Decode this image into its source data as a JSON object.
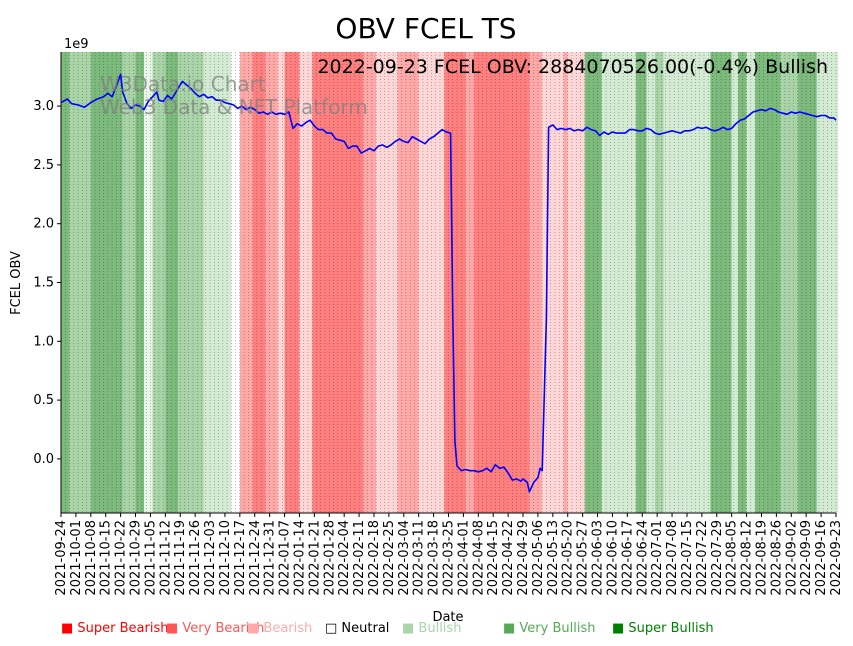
{
  "chart_data": {
    "type": "line",
    "title": "OBV FCEL TS",
    "annotation": "2022-09-23 FCEL OBV: 2884070526.00(-0.4%) Bullish",
    "watermark": [
      "W3Data.io Chart",
      "Web3 Data & NFT Platform"
    ],
    "xlabel": "Date",
    "ylabel": "FCEL OBV",
    "y_multiplier_label": "1e9",
    "ylim": [
      -0.46,
      3.46
    ],
    "y_ticks": [
      0.0,
      0.5,
      1.0,
      1.5,
      2.0,
      2.5,
      3.0
    ],
    "y_tick_labels": [
      "0.0",
      "0.5",
      "1.0",
      "1.5",
      "2.0",
      "2.5",
      "3.0"
    ],
    "x_start": "2021-09-24",
    "x_end": "2022-09-23",
    "x_tick_labels": [
      "2021-09-24",
      "2021-10-01",
      "2021-10-08",
      "2021-10-15",
      "2021-10-22",
      "2021-10-29",
      "2021-11-05",
      "2021-11-12",
      "2021-11-19",
      "2021-11-26",
      "2021-12-03",
      "2021-12-10",
      "2021-12-17",
      "2021-12-24",
      "2021-12-31",
      "2022-01-07",
      "2022-01-14",
      "2022-01-21",
      "2022-01-28",
      "2022-02-04",
      "2022-02-11",
      "2022-02-18",
      "2022-02-25",
      "2022-03-04",
      "2022-03-11",
      "2022-03-18",
      "2022-03-25",
      "2022-04-01",
      "2022-04-08",
      "2022-04-15",
      "2022-04-22",
      "2022-04-29",
      "2022-05-06",
      "2022-05-13",
      "2022-05-20",
      "2022-05-27",
      "2022-06-03",
      "2022-06-10",
      "2022-06-17",
      "2022-06-24",
      "2022-07-01",
      "2022-07-08",
      "2022-07-15",
      "2022-07-22",
      "2022-07-29",
      "2022-08-05",
      "2022-08-12",
      "2022-08-19",
      "2022-08-26",
      "2022-09-02",
      "2022-09-09",
      "2022-09-16",
      "2022-09-23"
    ],
    "series": [
      {
        "name": "FCEL OBV",
        "color": "#0000ff",
        "points": [
          [
            0,
            3.03
          ],
          [
            3,
            3.06
          ],
          [
            5,
            3.02
          ],
          [
            8,
            3.01
          ],
          [
            11,
            2.99
          ],
          [
            14,
            3.03
          ],
          [
            17,
            3.06
          ],
          [
            20,
            3.08
          ],
          [
            22,
            3.11
          ],
          [
            24,
            3.08
          ],
          [
            26,
            3.17
          ],
          [
            28,
            3.27
          ],
          [
            29,
            3.12
          ],
          [
            31,
            3.02
          ],
          [
            33,
            2.98
          ],
          [
            35,
            3.01
          ],
          [
            37,
            3.0
          ],
          [
            39,
            2.97
          ],
          [
            41,
            3.04
          ],
          [
            43,
            3.08
          ],
          [
            45,
            3.12
          ],
          [
            46,
            3.05
          ],
          [
            48,
            3.04
          ],
          [
            50,
            3.09
          ],
          [
            52,
            3.06
          ],
          [
            54,
            3.12
          ],
          [
            56,
            3.18
          ],
          [
            57,
            3.21
          ],
          [
            59,
            3.18
          ],
          [
            61,
            3.15
          ],
          [
            63,
            3.11
          ],
          [
            65,
            3.08
          ],
          [
            67,
            3.1
          ],
          [
            69,
            3.07
          ],
          [
            71,
            3.08
          ],
          [
            73,
            3.05
          ],
          [
            75,
            3.05
          ],
          [
            77,
            3.03
          ],
          [
            79,
            3.02
          ],
          [
            81,
            3.01
          ],
          [
            83,
            2.98
          ],
          [
            85,
            3.0
          ],
          [
            87,
            2.97
          ],
          [
            89,
            2.99
          ],
          [
            91,
            2.97
          ],
          [
            93,
            2.94
          ],
          [
            95,
            2.95
          ],
          [
            97,
            2.93
          ],
          [
            99,
            2.95
          ],
          [
            101,
            2.93
          ],
          [
            103,
            2.94
          ],
          [
            105,
            2.93
          ],
          [
            107,
            2.95
          ],
          [
            108,
            2.88
          ],
          [
            109,
            2.81
          ],
          [
            111,
            2.85
          ],
          [
            113,
            2.83
          ],
          [
            115,
            2.86
          ],
          [
            117,
            2.88
          ],
          [
            119,
            2.83
          ],
          [
            121,
            2.8
          ],
          [
            123,
            2.8
          ],
          [
            125,
            2.77
          ],
          [
            127,
            2.77
          ],
          [
            129,
            2.72
          ],
          [
            131,
            2.71
          ],
          [
            133,
            2.7
          ],
          [
            135,
            2.64
          ],
          [
            137,
            2.66
          ],
          [
            139,
            2.66
          ],
          [
            141,
            2.6
          ],
          [
            143,
            2.62
          ],
          [
            145,
            2.64
          ],
          [
            147,
            2.62
          ],
          [
            149,
            2.66
          ],
          [
            151,
            2.67
          ],
          [
            153,
            2.65
          ],
          [
            155,
            2.67
          ],
          [
            157,
            2.7
          ],
          [
            159,
            2.72
          ],
          [
            161,
            2.7
          ],
          [
            163,
            2.69
          ],
          [
            165,
            2.74
          ],
          [
            167,
            2.72
          ],
          [
            169,
            2.7
          ],
          [
            171,
            2.68
          ],
          [
            173,
            2.72
          ],
          [
            175,
            2.74
          ],
          [
            177,
            2.77
          ],
          [
            179,
            2.8
          ],
          [
            181,
            2.78
          ],
          [
            183,
            2.77
          ],
          [
            184,
            1.2
          ],
          [
            185,
            0.15
          ],
          [
            186,
            -0.06
          ],
          [
            188,
            -0.1
          ],
          [
            190,
            -0.09
          ],
          [
            192,
            -0.1
          ],
          [
            194,
            -0.1
          ],
          [
            196,
            -0.11
          ],
          [
            198,
            -0.1
          ],
          [
            200,
            -0.08
          ],
          [
            202,
            -0.11
          ],
          [
            204,
            -0.05
          ],
          [
            206,
            -0.08
          ],
          [
            208,
            -0.07
          ],
          [
            210,
            -0.12
          ],
          [
            212,
            -0.18
          ],
          [
            214,
            -0.17
          ],
          [
            216,
            -0.19
          ],
          [
            217,
            -0.17
          ],
          [
            219,
            -0.2
          ],
          [
            220,
            -0.28
          ],
          [
            222,
            -0.2
          ],
          [
            224,
            -0.16
          ],
          [
            225,
            -0.08
          ],
          [
            226,
            -0.1
          ],
          [
            228,
            1.2
          ],
          [
            229,
            2.82
          ],
          [
            231,
            2.84
          ],
          [
            233,
            2.8
          ],
          [
            235,
            2.81
          ],
          [
            237,
            2.8
          ],
          [
            239,
            2.81
          ],
          [
            241,
            2.79
          ],
          [
            243,
            2.8
          ],
          [
            245,
            2.79
          ],
          [
            247,
            2.82
          ],
          [
            249,
            2.8
          ],
          [
            251,
            2.79
          ],
          [
            253,
            2.75
          ],
          [
            255,
            2.78
          ],
          [
            257,
            2.76
          ],
          [
            259,
            2.78
          ],
          [
            261,
            2.77
          ],
          [
            263,
            2.77
          ],
          [
            265,
            2.77
          ],
          [
            267,
            2.8
          ],
          [
            269,
            2.8
          ],
          [
            271,
            2.79
          ],
          [
            273,
            2.79
          ],
          [
            275,
            2.81
          ],
          [
            277,
            2.8
          ],
          [
            279,
            2.77
          ],
          [
            281,
            2.76
          ],
          [
            283,
            2.77
          ],
          [
            285,
            2.78
          ],
          [
            287,
            2.79
          ],
          [
            289,
            2.78
          ],
          [
            291,
            2.77
          ],
          [
            293,
            2.79
          ],
          [
            295,
            2.79
          ],
          [
            297,
            2.8
          ],
          [
            299,
            2.82
          ],
          [
            301,
            2.81
          ],
          [
            303,
            2.82
          ],
          [
            305,
            2.8
          ],
          [
            307,
            2.79
          ],
          [
            309,
            2.8
          ],
          [
            311,
            2.82
          ],
          [
            313,
            2.8
          ],
          [
            315,
            2.81
          ],
          [
            317,
            2.85
          ],
          [
            319,
            2.88
          ],
          [
            321,
            2.89
          ],
          [
            323,
            2.92
          ],
          [
            325,
            2.95
          ],
          [
            327,
            2.96
          ],
          [
            329,
            2.97
          ],
          [
            331,
            2.96
          ],
          [
            333,
            2.98
          ],
          [
            335,
            2.97
          ],
          [
            337,
            2.95
          ],
          [
            339,
            2.94
          ],
          [
            341,
            2.93
          ],
          [
            343,
            2.95
          ],
          [
            345,
            2.94
          ],
          [
            347,
            2.95
          ],
          [
            349,
            2.94
          ],
          [
            351,
            2.93
          ],
          [
            353,
            2.92
          ],
          [
            355,
            2.91
          ],
          [
            357,
            2.92
          ],
          [
            359,
            2.92
          ],
          [
            361,
            2.9
          ],
          [
            363,
            2.9
          ],
          [
            364,
            2.88
          ]
        ]
      }
    ],
    "sentiment_bands": [
      [
        0,
        4,
        "very-bullish"
      ],
      [
        4,
        14,
        "bullish"
      ],
      [
        14,
        29,
        "very-bullish"
      ],
      [
        29,
        35,
        "bullish"
      ],
      [
        35,
        39,
        "very-bullish"
      ],
      [
        39,
        43,
        "neutral-bullish"
      ],
      [
        43,
        49,
        "bullish"
      ],
      [
        49,
        55,
        "very-bullish"
      ],
      [
        55,
        61,
        "bullish"
      ],
      [
        61,
        67,
        "bullish"
      ],
      [
        67,
        80,
        "light-bullish"
      ],
      [
        80,
        84,
        "neutral"
      ],
      [
        84,
        90,
        "bearish"
      ],
      [
        90,
        96,
        "very-bearish"
      ],
      [
        96,
        102,
        "bearish"
      ],
      [
        102,
        105,
        "light-bearish"
      ],
      [
        105,
        112,
        "very-bearish"
      ],
      [
        112,
        118,
        "light-bearish"
      ],
      [
        118,
        142,
        "very-bearish"
      ],
      [
        142,
        148,
        "bearish"
      ],
      [
        148,
        158,
        "light-bearish"
      ],
      [
        158,
        168,
        "bearish"
      ],
      [
        168,
        180,
        "light-bearish"
      ],
      [
        180,
        190,
        "very-bearish"
      ],
      [
        190,
        194,
        "bearish"
      ],
      [
        194,
        210,
        "very-bearish"
      ],
      [
        210,
        220,
        "very-bearish"
      ],
      [
        220,
        226,
        "bearish"
      ],
      [
        226,
        236,
        "light-bearish"
      ],
      [
        236,
        238,
        "bearish"
      ],
      [
        238,
        246,
        "light-bearish"
      ],
      [
        246,
        254,
        "very-bullish"
      ],
      [
        254,
        263,
        "light-bullish"
      ],
      [
        263,
        270,
        "light-bullish"
      ],
      [
        270,
        275,
        "very-bullish"
      ],
      [
        275,
        279,
        "light-bullish"
      ],
      [
        279,
        283,
        "bullish"
      ],
      [
        283,
        288,
        "light-bullish"
      ],
      [
        288,
        295,
        "light-bullish"
      ],
      [
        295,
        305,
        "light-bullish"
      ],
      [
        305,
        315,
        "very-bullish"
      ],
      [
        315,
        318,
        "light-bullish"
      ],
      [
        318,
        322,
        "very-bullish"
      ],
      [
        322,
        326,
        "light-bullish"
      ],
      [
        326,
        338,
        "very-bullish"
      ],
      [
        338,
        346,
        "bullish"
      ],
      [
        346,
        355,
        "very-bullish"
      ],
      [
        355,
        365,
        "light-bullish"
      ]
    ],
    "legend": [
      {
        "label": "Super Bearish",
        "color": "#ff0000"
      },
      {
        "label": "Very Bearish",
        "color": "#ff5555"
      },
      {
        "label": "Bearish",
        "color": "#ffaaaa"
      },
      {
        "label": "Neutral",
        "color": "#000000"
      },
      {
        "label": "Bullish",
        "color": "#aad4aa"
      },
      {
        "label": "Very Bullish",
        "color": "#55aa55"
      },
      {
        "label": "Super Bullish",
        "color": "#008000"
      }
    ],
    "colors": {
      "very-bullish": "#7dbb7d",
      "bullish": "#a8d4a8",
      "light-bullish": "#d3ead3",
      "neutral": "#ffffff",
      "neutral-bullish": "#eaf5ea",
      "light-bearish": "#ffd7d7",
      "bearish": "#ffa8a8",
      "very-bearish": "#ff7f7f"
    }
  }
}
